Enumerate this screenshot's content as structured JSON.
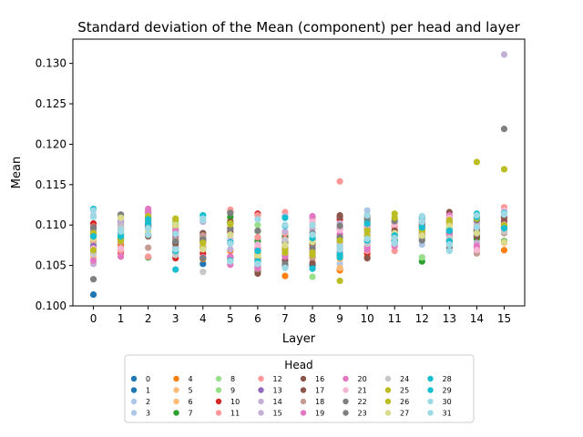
{
  "chart_data": {
    "type": "scatter",
    "title": "Standard deviation of the Mean (component) per head and layer",
    "xlabel": "Layer",
    "ylabel": "Mean",
    "xlim": [
      -0.75,
      15.75
    ],
    "ylim": [
      0.1,
      0.133
    ],
    "x_ticks": [
      0,
      1,
      2,
      3,
      4,
      5,
      6,
      7,
      8,
      9,
      10,
      11,
      12,
      13,
      14,
      15
    ],
    "y_ticks": [
      0.1,
      0.105,
      0.11,
      0.115,
      0.12,
      0.125,
      0.13
    ],
    "y_tick_labels": [
      "0.100",
      "0.105",
      "0.110",
      "0.115",
      "0.120",
      "0.125",
      "0.130"
    ],
    "grid": false,
    "legend_title": "Head",
    "legend_placement": "below plot, 8 columns",
    "legend_labels": [
      "0",
      "1",
      "2",
      "3",
      "4",
      "5",
      "6",
      "7",
      "8",
      "9",
      "10",
      "11",
      "12",
      "13",
      "14",
      "15",
      "16",
      "17",
      "18",
      "19",
      "20",
      "21",
      "22",
      "23",
      "24",
      "25",
      "26",
      "27",
      "28",
      "29",
      "30",
      "31"
    ],
    "head_colors": [
      "#1f77b4",
      "#1f77b4",
      "#aec7e8",
      "#aec7e8",
      "#ff7f0e",
      "#ffbb78",
      "#ffbb78",
      "#2ca02c",
      "#98df8a",
      "#98df8a",
      "#d62728",
      "#ff9896",
      "#ff9896",
      "#9467bd",
      "#c5b0d5",
      "#c5b0d5",
      "#8c564b",
      "#8c564b",
      "#c49c94",
      "#e377c2",
      "#e377c2",
      "#f7b6d2",
      "#7f7f7f",
      "#7f7f7f",
      "#c7c7c7",
      "#bcbd22",
      "#bcbd22",
      "#dbdb8d",
      "#17becf",
      "#17becf",
      "#9edae5",
      "#9edae5"
    ],
    "layer_values": [
      [
        0.1014,
        0.1085,
        0.1112,
        0.1095,
        0.1072,
        0.1089,
        0.106,
        0.108,
        0.1075,
        0.1078,
        0.1102,
        0.1098,
        0.1081,
        0.1074,
        0.1092,
        0.1052,
        0.1088,
        0.1097,
        0.1066,
        0.1056,
        0.1091,
        0.1071,
        0.1033,
        0.1096,
        0.1064,
        0.109,
        0.1069,
        0.1083,
        0.1086,
        0.112,
        0.1118,
        0.111
      ],
      [
        0.1082,
        0.1075,
        0.1088,
        0.1093,
        0.1076,
        0.1099,
        0.1095,
        0.1085,
        0.11,
        0.1102,
        0.1066,
        0.1068,
        0.1069,
        0.1105,
        0.1107,
        0.1101,
        0.1111,
        0.1097,
        0.1096,
        0.1061,
        0.1079,
        0.1071,
        0.1113,
        0.109,
        0.1097,
        0.1084,
        0.108,
        0.1109,
        0.1088,
        0.1086,
        0.1094,
        0.1092
      ],
      [
        0.1104,
        0.1099,
        0.1095,
        0.1087,
        0.1105,
        0.1112,
        0.111,
        0.106,
        0.1108,
        0.1112,
        0.1116,
        0.1089,
        0.1061,
        0.111,
        0.1097,
        0.1114,
        0.1086,
        0.11,
        0.1072,
        0.112,
        0.1116,
        0.1106,
        0.1102,
        0.1097,
        0.1089,
        0.1108,
        0.1111,
        0.1092,
        0.1102,
        0.1107,
        0.1096,
        0.1088
      ],
      [
        0.1072,
        0.1079,
        0.1069,
        0.1062,
        0.1099,
        0.1097,
        0.1084,
        0.1101,
        0.1103,
        0.1105,
        0.1059,
        0.1065,
        0.1086,
        0.1088,
        0.1074,
        0.1095,
        0.1077,
        0.1082,
        0.1094,
        0.1092,
        0.109,
        0.1081,
        0.1067,
        0.108,
        0.1063,
        0.1108,
        0.1107,
        0.11,
        0.1045,
        0.1068,
        0.107,
        0.1089
      ],
      [
        0.1052,
        0.107,
        0.1084,
        0.109,
        0.1058,
        0.1062,
        0.1083,
        0.1086,
        0.1078,
        0.108,
        0.1065,
        0.1076,
        0.1088,
        0.1083,
        0.1104,
        0.106,
        0.108,
        0.109,
        0.1087,
        0.106,
        0.1073,
        0.1075,
        0.1059,
        0.1082,
        0.1042,
        0.1072,
        0.1078,
        0.107,
        0.1112,
        0.1112,
        0.1106,
        0.1108
      ],
      [
        0.106,
        0.106,
        0.1057,
        0.1083,
        0.1068,
        0.1106,
        0.1058,
        0.111,
        0.1092,
        0.1102,
        0.1116,
        0.1119,
        0.1117,
        0.1095,
        0.107,
        0.1077,
        0.1104,
        0.1091,
        0.1079,
        0.1051,
        0.1061,
        0.1081,
        0.1115,
        0.1096,
        0.1088,
        0.1101,
        0.1102,
        0.1088,
        0.1079,
        0.1056,
        0.1077,
        0.1055
      ],
      [
        0.1059,
        0.1049,
        0.1082,
        0.1067,
        0.1062,
        0.1071,
        0.1066,
        0.108,
        0.11,
        0.1092,
        0.1114,
        0.1112,
        0.1085,
        0.1069,
        0.1076,
        0.1062,
        0.104,
        0.1043,
        0.1046,
        0.1047,
        0.1072,
        0.1075,
        0.1093,
        0.1058,
        0.1053,
        0.1061,
        0.1064,
        0.1062,
        0.1055,
        0.1068,
        0.1052,
        0.1107
      ],
      [
        0.1062,
        0.1068,
        0.1075,
        0.1058,
        0.1037,
        0.1063,
        0.107,
        0.1086,
        0.1074,
        0.1081,
        0.1083,
        0.109,
        0.1116,
        0.1072,
        0.1092,
        0.1111,
        0.1056,
        0.1049,
        0.1065,
        0.1061,
        0.1068,
        0.1077,
        0.1052,
        0.1079,
        0.1082,
        0.1066,
        0.1071,
        0.1075,
        0.1109,
        0.1099,
        0.11,
        0.1047
      ],
      [
        0.105,
        0.1065,
        0.1067,
        0.1061,
        0.1075,
        0.1062,
        0.1058,
        0.1078,
        0.1036,
        0.1087,
        0.1083,
        0.1062,
        0.1108,
        0.11,
        0.1095,
        0.111,
        0.1053,
        0.1077,
        0.106,
        0.1111,
        0.1069,
        0.1104,
        0.109,
        0.1072,
        0.1081,
        0.1066,
        0.1063,
        0.1079,
        0.1046,
        0.1084,
        0.1088,
        0.11
      ],
      [
        0.1046,
        0.1072,
        0.1083,
        0.1052,
        0.1044,
        0.1047,
        0.1058,
        0.1062,
        0.1083,
        0.1076,
        0.1107,
        0.1154,
        0.1063,
        0.1095,
        0.1088,
        0.1102,
        0.1112,
        0.111,
        0.1079,
        0.1067,
        0.1089,
        0.1094,
        0.1085,
        0.1099,
        0.1075,
        0.1031,
        0.1081,
        0.107,
        0.1064,
        0.106,
        0.1073,
        0.107
      ],
      [
        0.1096,
        0.11,
        0.1118,
        0.1104,
        0.1061,
        0.1072,
        0.1088,
        0.1092,
        0.1108,
        0.1094,
        0.1065,
        0.1068,
        0.1097,
        0.108,
        0.11,
        0.1091,
        0.1112,
        0.1059,
        0.1084,
        0.107,
        0.1073,
        0.1087,
        0.1105,
        0.1109,
        0.1077,
        0.1087,
        0.1093,
        0.1082,
        0.1081,
        0.1102,
        0.1112,
        0.1083
      ],
      [
        0.1081,
        0.1078,
        0.1088,
        0.1096,
        0.1088,
        0.1099,
        0.1094,
        0.1102,
        0.1085,
        0.1107,
        0.1082,
        0.1068,
        0.1098,
        0.1076,
        0.1092,
        0.1074,
        0.1087,
        0.1093,
        0.1083,
        0.1074,
        0.108,
        0.1101,
        0.1105,
        0.109,
        0.1077,
        0.1114,
        0.1109,
        0.109,
        0.1087,
        0.108,
        0.1084,
        0.1078
      ],
      [
        0.1085,
        0.109,
        0.1076,
        0.106,
        0.1098,
        0.1086,
        0.1093,
        0.1055,
        0.106,
        0.1082,
        0.1094,
        0.109,
        0.1095,
        0.1104,
        0.111,
        0.1108,
        0.1102,
        0.1088,
        0.1096,
        0.1099,
        0.109,
        0.1092,
        0.1081,
        0.11,
        0.1107,
        0.1089,
        0.1093,
        0.1087,
        0.111,
        0.1097,
        0.1111,
        0.1104
      ],
      [
        0.1095,
        0.109,
        0.1087,
        0.1082,
        0.11,
        0.1101,
        0.1088,
        0.1091,
        0.1096,
        0.1086,
        0.1079,
        0.1102,
        0.111,
        0.1092,
        0.1075,
        0.1104,
        0.1108,
        0.1116,
        0.1087,
        0.1112,
        0.1089,
        0.1109,
        0.1072,
        0.1081,
        0.1084,
        0.1103,
        0.1106,
        0.1099,
        0.108,
        0.1093,
        0.1076,
        0.1068
      ],
      [
        0.1092,
        0.1094,
        0.109,
        0.11,
        0.1085,
        0.1087,
        0.1095,
        0.1083,
        0.1091,
        0.1088,
        0.1096,
        0.1099,
        0.1094,
        0.1107,
        0.1103,
        0.1078,
        0.1086,
        0.1093,
        0.1065,
        0.1074,
        0.1072,
        0.1069,
        0.1089,
        0.1106,
        0.1098,
        0.1178,
        0.1108,
        0.109,
        0.1114,
        0.111,
        0.1097,
        0.1112
      ],
      [
        0.1095,
        0.1099,
        0.1106,
        0.1109,
        0.1069,
        0.1078,
        0.1093,
        0.108,
        0.1097,
        0.1102,
        0.111,
        0.1108,
        0.1122,
        0.1104,
        0.1104,
        0.1311,
        0.1105,
        0.111,
        0.109,
        0.1097,
        0.1101,
        0.1118,
        0.1219,
        0.1098,
        0.1092,
        0.1169,
        0.11,
        0.1079,
        0.1096,
        0.1115,
        0.1113,
        0.1114
      ]
    ]
  }
}
